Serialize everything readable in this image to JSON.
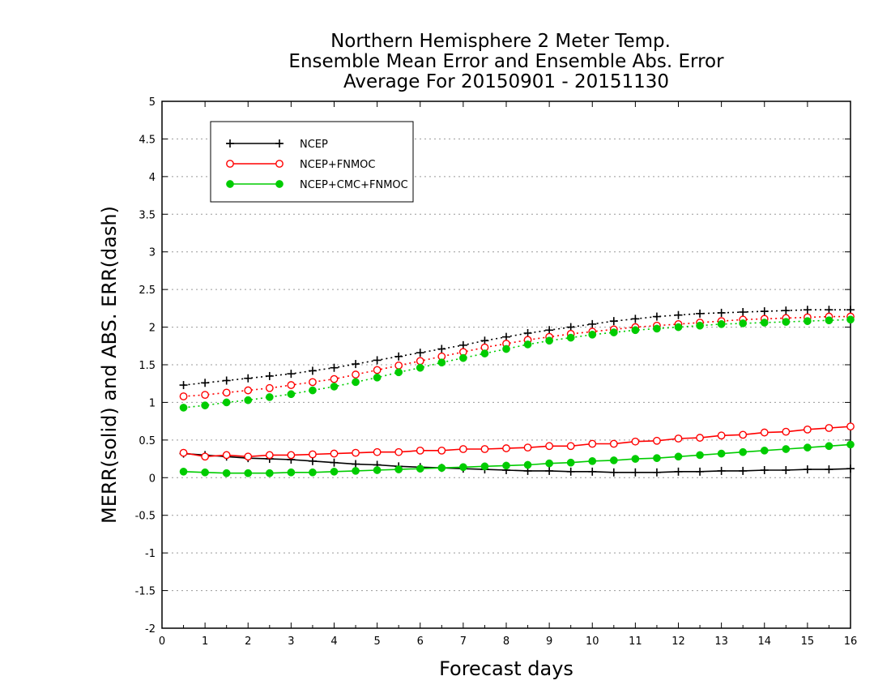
{
  "chart_data": {
    "type": "line",
    "title": [
      "Northern Hemisphere 2 Meter Temp.",
      "Ensemble Mean Error and Ensemble Abs. Error",
      "Average For 20150901 - 20151130"
    ],
    "xlabel": "Forecast days",
    "ylabel": "MERR(solid) and ABS. ERR(dash)",
    "xlim": [
      0,
      16
    ],
    "ylim": [
      -2,
      5
    ],
    "xticks": [
      "0",
      "1",
      "2",
      "3",
      "4",
      "5",
      "6",
      "7",
      "8",
      "9",
      "10",
      "11",
      "12",
      "13",
      "14",
      "15",
      "16"
    ],
    "yticks": [
      "-2",
      "-1.5",
      "-1",
      "-0.5",
      "0",
      "0.5",
      "1",
      "1.5",
      "2",
      "2.5",
      "3",
      "3.5",
      "4",
      "4.5",
      "5"
    ],
    "grid": "horizontal dotted",
    "legend_position": "top-left",
    "x": [
      0.5,
      1,
      1.5,
      2,
      2.5,
      3,
      3.5,
      4,
      4.5,
      5,
      5.5,
      6,
      6.5,
      7,
      7.5,
      8,
      8.5,
      9,
      9.5,
      10,
      10.5,
      11,
      11.5,
      12,
      12.5,
      13,
      13.5,
      14,
      14.5,
      15,
      15.5,
      16
    ],
    "series": [
      {
        "name": "NCEP",
        "color": "#000000",
        "marker": "plus",
        "merr": [
          0.32,
          0.3,
          0.28,
          0.26,
          0.25,
          0.24,
          0.22,
          0.2,
          0.18,
          0.17,
          0.15,
          0.14,
          0.13,
          0.12,
          0.11,
          0.1,
          0.09,
          0.09,
          0.08,
          0.08,
          0.07,
          0.07,
          0.07,
          0.08,
          0.08,
          0.09,
          0.09,
          0.1,
          0.1,
          0.11,
          0.11,
          0.12
        ],
        "abs_err": [
          1.23,
          1.26,
          1.29,
          1.32,
          1.35,
          1.38,
          1.42,
          1.46,
          1.51,
          1.56,
          1.61,
          1.66,
          1.71,
          1.76,
          1.82,
          1.87,
          1.92,
          1.96,
          2.0,
          2.04,
          2.08,
          2.11,
          2.14,
          2.16,
          2.18,
          2.19,
          2.2,
          2.21,
          2.22,
          2.23,
          2.23,
          2.23
        ]
      },
      {
        "name": "NCEP+FNMOC",
        "color": "#ff0000",
        "marker": "open-circle",
        "merr": [
          0.33,
          0.28,
          0.3,
          0.28,
          0.3,
          0.3,
          0.31,
          0.32,
          0.33,
          0.34,
          0.34,
          0.36,
          0.36,
          0.38,
          0.38,
          0.39,
          0.4,
          0.42,
          0.42,
          0.45,
          0.45,
          0.48,
          0.49,
          0.52,
          0.53,
          0.56,
          0.57,
          0.6,
          0.61,
          0.64,
          0.66,
          0.68
        ],
        "abs_err": [
          1.08,
          1.1,
          1.13,
          1.16,
          1.19,
          1.23,
          1.27,
          1.31,
          1.37,
          1.43,
          1.49,
          1.55,
          1.61,
          1.67,
          1.73,
          1.78,
          1.83,
          1.87,
          1.91,
          1.94,
          1.97,
          2.0,
          2.02,
          2.04,
          2.06,
          2.08,
          2.1,
          2.11,
          2.12,
          2.13,
          2.14,
          2.14
        ]
      },
      {
        "name": "NCEP+CMC+FNMOC",
        "color": "#00cc00",
        "marker": "filled-circle",
        "merr": [
          0.08,
          0.07,
          0.06,
          0.06,
          0.06,
          0.07,
          0.07,
          0.08,
          0.09,
          0.1,
          0.11,
          0.12,
          0.13,
          0.14,
          0.15,
          0.16,
          0.17,
          0.19,
          0.2,
          0.22,
          0.23,
          0.25,
          0.26,
          0.28,
          0.3,
          0.32,
          0.34,
          0.36,
          0.38,
          0.4,
          0.42,
          0.44
        ],
        "abs_err": [
          0.93,
          0.96,
          1.0,
          1.03,
          1.07,
          1.11,
          1.16,
          1.21,
          1.27,
          1.33,
          1.4,
          1.46,
          1.53,
          1.59,
          1.65,
          1.71,
          1.77,
          1.82,
          1.86,
          1.9,
          1.93,
          1.96,
          1.98,
          2.0,
          2.02,
          2.04,
          2.05,
          2.06,
          2.07,
          2.08,
          2.09,
          2.1
        ]
      }
    ]
  }
}
